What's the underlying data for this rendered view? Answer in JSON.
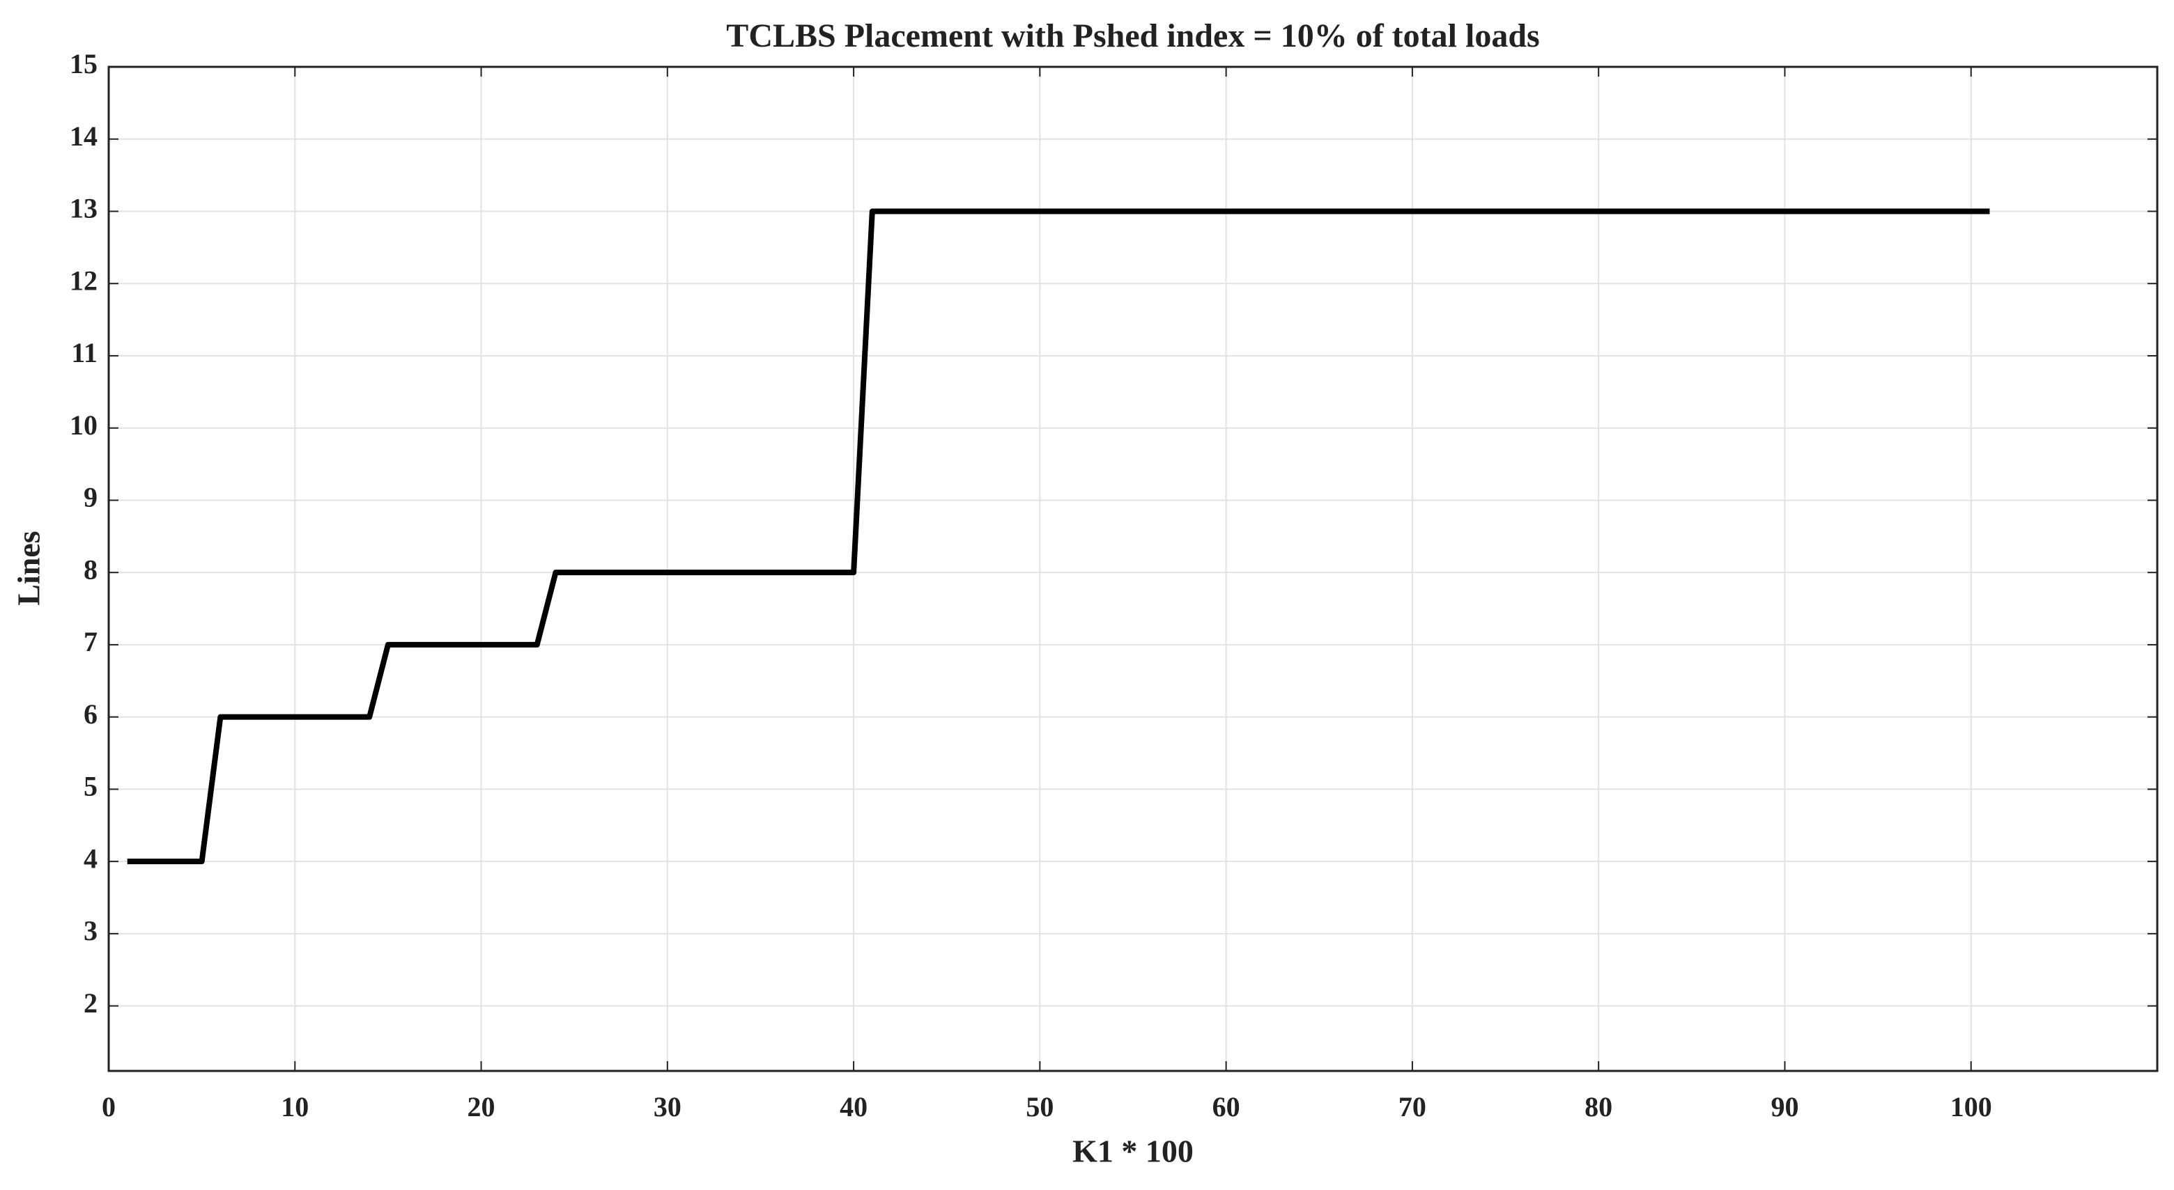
{
  "chart_data": {
    "type": "line",
    "title": "TCLBS Placement with Pshed index = 10% of total loads",
    "x_label": "K1 * 100",
    "y_label": "Lines",
    "x": [
      1,
      5,
      6,
      14,
      15,
      23,
      24,
      40,
      41,
      101
    ],
    "series": [
      {
        "name": "Lines",
        "color": "#000000",
        "values": [
          4,
          4,
          6,
          6,
          7,
          7,
          8,
          8,
          13,
          13
        ]
      }
    ],
    "xlim": [
      0,
      110
    ],
    "xticks": [
      0,
      10,
      20,
      30,
      40,
      50,
      60,
      70,
      80,
      90,
      100
    ],
    "ylim": [
      1.1,
      15
    ],
    "yticks": [
      2,
      3,
      4,
      5,
      6,
      7,
      8,
      9,
      10,
      11,
      12,
      13,
      14,
      15
    ],
    "grid": true
  }
}
